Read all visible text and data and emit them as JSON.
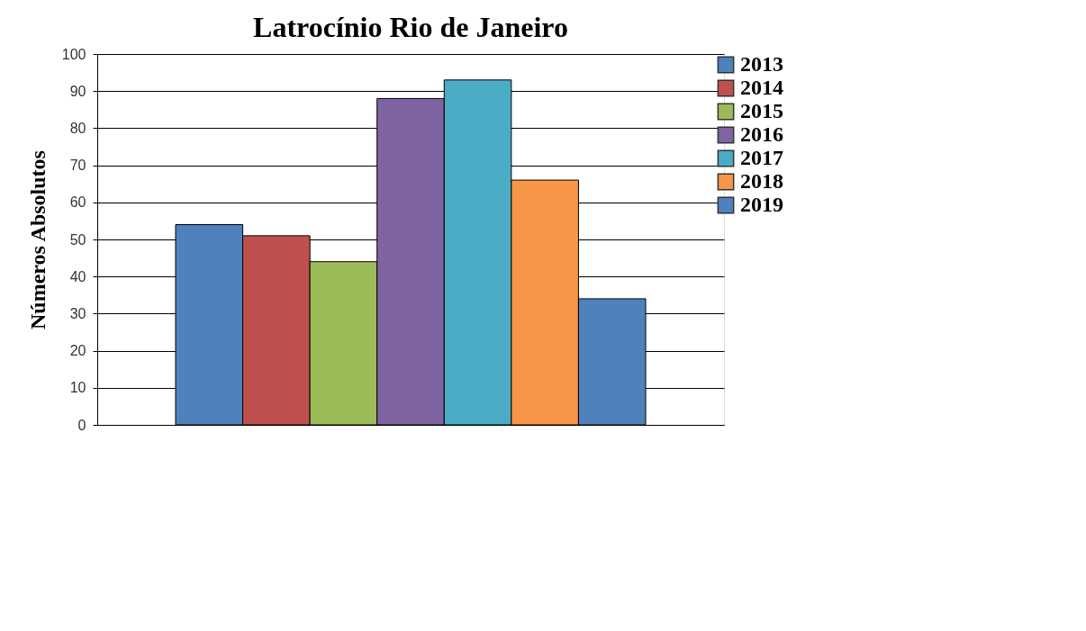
{
  "chart_data": {
    "type": "bar",
    "title": "Latrocínio Rio de Janeiro",
    "ylabel": "Números Absolutos",
    "categories": [
      null
    ],
    "series": [
      {
        "name": "2013",
        "color": "#4f81bd",
        "values": [
          54
        ]
      },
      {
        "name": "2014",
        "color": "#c0504d",
        "values": [
          51
        ]
      },
      {
        "name": "2015",
        "color": "#9bbb59",
        "values": [
          44
        ]
      },
      {
        "name": "2016",
        "color": "#8064a2",
        "values": [
          88
        ]
      },
      {
        "name": "2017",
        "color": "#4bacc6",
        "values": [
          93
        ]
      },
      {
        "name": "2018",
        "color": "#f79646",
        "values": [
          66
        ]
      },
      {
        "name": "2019",
        "color": "#4f81bd",
        "values": [
          34
        ]
      }
    ],
    "ylim": [
      0,
      100
    ],
    "yticks": [
      0,
      10,
      20,
      30,
      40,
      50,
      60,
      70,
      80,
      90,
      100
    ],
    "grid": "y",
    "legend": "right",
    "tick_labels": "y"
  }
}
